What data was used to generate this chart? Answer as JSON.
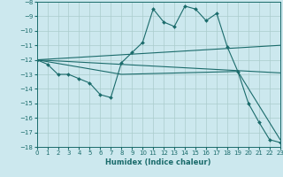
{
  "xlabel": "Humidex (Indice chaleur)",
  "bg_color": "#cce8ee",
  "grid_color": "#aacccc",
  "line_color": "#1a6b6b",
  "xlim": [
    0,
    23
  ],
  "ylim": [
    -18,
    -8
  ],
  "xticks": [
    0,
    1,
    2,
    3,
    4,
    5,
    6,
    7,
    8,
    9,
    10,
    11,
    12,
    13,
    14,
    15,
    16,
    17,
    18,
    19,
    20,
    21,
    22,
    23
  ],
  "yticks": [
    -8,
    -9,
    -10,
    -11,
    -12,
    -13,
    -14,
    -15,
    -16,
    -17,
    -18
  ],
  "curve_x": [
    0,
    1,
    2,
    3,
    4,
    5,
    6,
    7,
    8,
    9,
    10,
    11,
    12,
    13,
    14,
    15,
    16,
    17,
    18,
    19,
    20,
    21,
    22,
    23
  ],
  "curve_y": [
    -12,
    -12.3,
    -13.0,
    -13.0,
    -13.3,
    -13.6,
    -14.4,
    -14.6,
    -12.2,
    -11.5,
    -10.8,
    -8.5,
    -9.4,
    -9.7,
    -8.3,
    -8.5,
    -9.3,
    -8.8,
    -11.1,
    -12.8,
    -15.0,
    -16.3,
    -17.5,
    -17.7
  ],
  "line1_x": [
    0,
    23
  ],
  "line1_y": [
    -12.0,
    -11.0
  ],
  "line2_x": [
    0,
    23
  ],
  "line2_y": [
    -12.0,
    -12.9
  ],
  "line3_x": [
    0,
    8,
    19,
    23
  ],
  "line3_y": [
    -12.0,
    -13.0,
    -12.8,
    -17.5
  ]
}
